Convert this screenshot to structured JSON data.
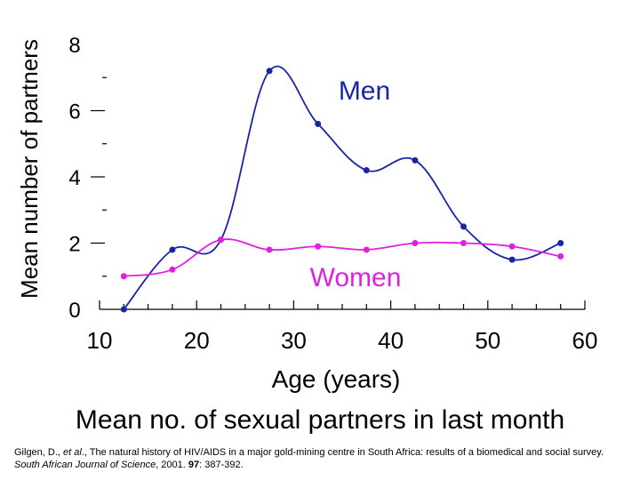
{
  "chart_data": {
    "type": "line",
    "title": "Mean no. of sexual partners in last month",
    "xlabel": "Age (years)",
    "ylabel": "Mean number of partners",
    "xlim": [
      10,
      60
    ],
    "ylim": [
      0,
      8
    ],
    "x_ticks": [
      "10",
      "20",
      "30",
      "40",
      "50",
      "60"
    ],
    "y_ticks": [
      "0",
      "2",
      "4",
      "6",
      "8"
    ],
    "x_minor_step": 2.5,
    "y_minor_step": 1,
    "grid": false,
    "series": [
      {
        "name": "Men",
        "color": "#1a24a8",
        "x": [
          12.5,
          17.5,
          22.5,
          27.5,
          32.5,
          37.5,
          42.5,
          47.5,
          52.5,
          57.5
        ],
        "y": [
          0.0,
          1.8,
          2.1,
          7.2,
          5.6,
          4.2,
          4.5,
          2.5,
          1.5,
          2.0
        ]
      },
      {
        "name": "Women",
        "color": "#e020e0",
        "x": [
          12.5,
          17.5,
          22.5,
          27.5,
          32.5,
          37.5,
          42.5,
          47.5,
          52.5,
          57.5
        ],
        "y": [
          1.0,
          1.2,
          2.1,
          1.8,
          1.9,
          1.8,
          2.0,
          2.0,
          1.9,
          1.6
        ]
      }
    ]
  },
  "citation": {
    "authors": "Gilgen, D., ",
    "et_al": "et al",
    "after_et_al": "., The natural history of HIV/AIDS in a major gold-mining centre in South Africa: results of a biomedical and social survey. ",
    "journal": "South African Journal of Science",
    "year": ", 2001. ",
    "volume": "97",
    "pages": ": 387-392."
  }
}
